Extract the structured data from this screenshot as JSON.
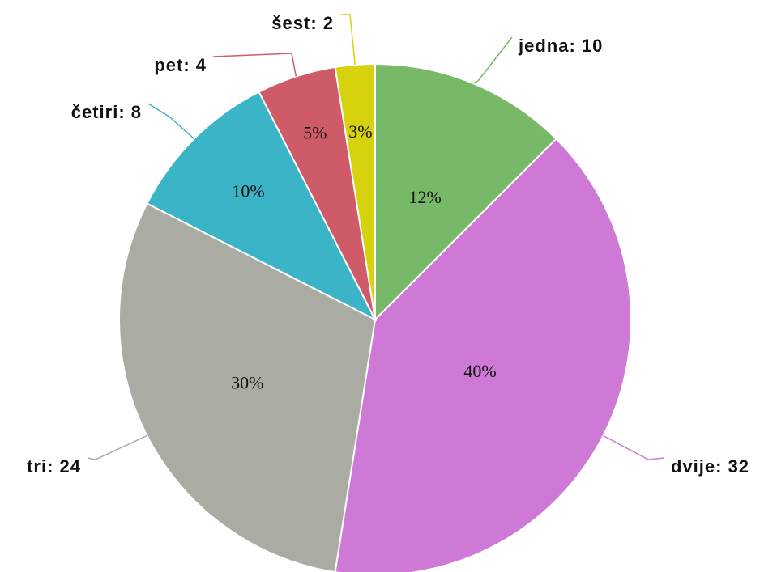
{
  "chart_data": {
    "type": "pie",
    "values": [
      10,
      32,
      24,
      8,
      4,
      2
    ],
    "value_labels": [
      "jedna: 10",
      "dvije: 32",
      "tri: 24",
      "četiri: 8",
      "pet: 4",
      "šest: 2"
    ],
    "percent_labels": [
      "12%",
      "40%",
      "30%",
      "10%",
      "5%",
      "3%"
    ],
    "colors": [
      "#77b966",
      "#cf79d6",
      "#aaaba3",
      "#3ab4c6",
      "#cf5a68",
      "#d6d20e"
    ]
  }
}
